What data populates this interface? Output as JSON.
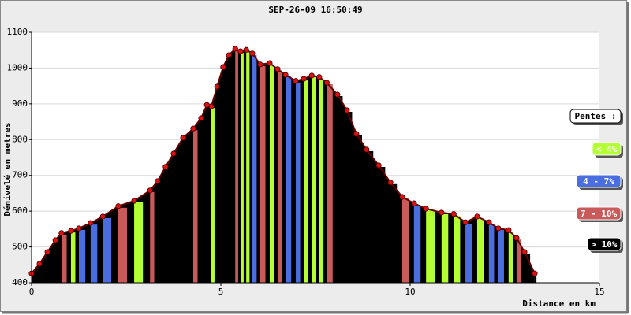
{
  "chart_data": {
    "type": "elevation-profile",
    "title": "SEP-26-09 16:50:49",
    "y_label": "Dénivelé en metres",
    "x_label": "Distance en km",
    "legend_title": "Pentes :",
    "legend": [
      {
        "label": "< 4%",
        "color": "#b3ff33"
      },
      {
        "label": "4 - 7%",
        "color": "#4a6ee0"
      },
      {
        "label": "7 - 10%",
        "color": "#c85a5a"
      },
      {
        "label": "> 10%",
        "color": "#000000"
      }
    ],
    "x": [
      0,
      0.21,
      0.42,
      0.63,
      0.79,
      1.04,
      1.25,
      1.56,
      1.88,
      2.29,
      2.71,
      3.13,
      3.33,
      3.54,
      3.75,
      4.0,
      4.27,
      4.48,
      4.63,
      4.75,
      4.9,
      5.06,
      5.21,
      5.38,
      5.52,
      5.67,
      5.83,
      6.04,
      6.29,
      6.5,
      6.71,
      6.98,
      7.19,
      7.4,
      7.6,
      7.8,
      8.08,
      8.33,
      8.58,
      8.85,
      9.17,
      9.48,
      9.79,
      10.1,
      10.42,
      10.83,
      11.15,
      11.46,
      11.77,
      12.08,
      12.33,
      12.6,
      12.81,
      13.02,
      13.29
    ],
    "values": [
      426,
      453,
      486,
      519,
      539,
      545,
      552,
      567,
      585,
      614,
      629,
      658,
      684,
      724,
      761,
      805,
      831,
      860,
      897,
      893,
      948,
      1003,
      1036,
      1054,
      1047,
      1051,
      1041,
      1010,
      1014,
      997,
      981,
      964,
      970,
      979,
      975,
      959,
      926,
      882,
      816,
      772,
      728,
      680,
      640,
      622,
      607,
      596,
      592,
      569,
      585,
      569,
      552,
      547,
      525,
      486,
      426
    ],
    "slope_class": [
      3,
      3,
      3,
      3,
      2,
      0,
      1,
      1,
      1,
      2,
      0,
      2,
      3,
      3,
      3,
      3,
      2,
      3,
      3,
      0,
      3,
      3,
      3,
      2,
      0,
      0,
      1,
      2,
      0,
      2,
      1,
      1,
      0,
      0,
      0,
      2,
      3,
      3,
      3,
      3,
      3,
      3,
      2,
      1,
      0,
      0,
      0,
      1,
      0,
      1,
      1,
      0,
      2,
      3,
      3
    ],
    "area_color": "#000000",
    "point_color": "#dd1111",
    "xlim": [
      0,
      15
    ],
    "ylim": [
      400,
      1100
    ],
    "xticks": [
      0,
      5,
      10,
      15
    ],
    "yticks": [
      400,
      500,
      600,
      700,
      800,
      900,
      1000,
      1100
    ],
    "grid": true
  }
}
